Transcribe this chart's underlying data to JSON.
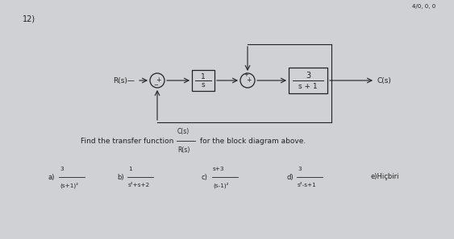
{
  "bg_color": "#cfd1d5",
  "question_number": "12)",
  "question_text": "Find the transfer function",
  "fraction_num": "C(s)",
  "fraction_den": "R(s)",
  "question_suffix": "for the block diagram above.",
  "Rs_label": "R(s)",
  "Cs_label": "C(s)",
  "options": [
    {
      "label": "a)",
      "num": "3",
      "den": "(s+1)²"
    },
    {
      "label": "b)",
      "num": "1",
      "den": "s²+s+2"
    },
    {
      "label": "c)",
      "num": "s+3",
      "den": "(s-1)²"
    },
    {
      "label": "d)",
      "num": "3",
      "den": "s²-s+1"
    },
    {
      "label": "e)",
      "text": "Hiçbiri"
    }
  ],
  "text_color": "#222222",
  "box_color": "#222222",
  "arrow_color": "#222222",
  "corner_text": "4/0, 0, 0"
}
